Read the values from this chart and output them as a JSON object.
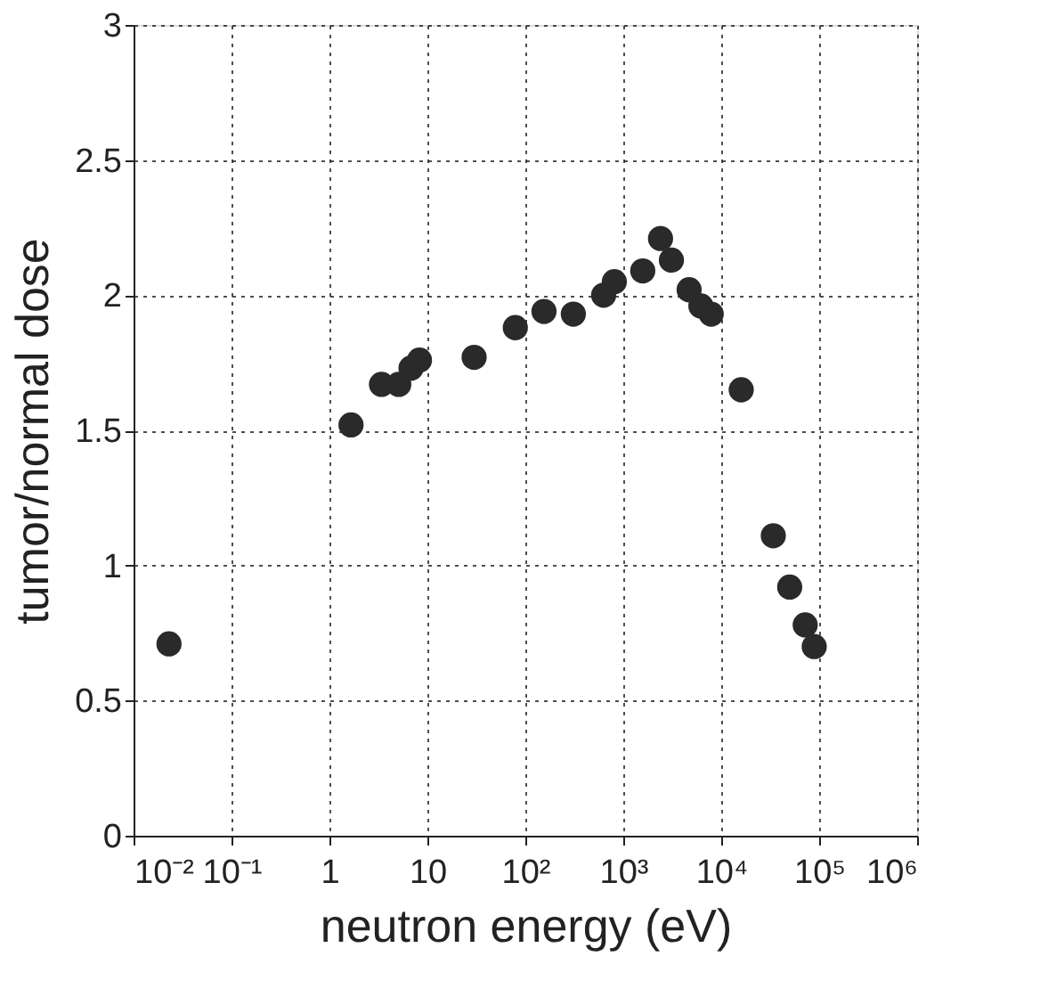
{
  "chart_data": {
    "type": "scatter",
    "xlabel": "neutron energy (eV)",
    "ylabel": "tumor/normal dose",
    "x": [
      0.023,
      1.66,
      3.4,
      5.1,
      6.8,
      8.3,
      30,
      79,
      155,
      309,
      630,
      810,
      1580,
      2400,
      3100,
      4700,
      6200,
      7900,
      16000,
      34000,
      50000,
      72000,
      89000
    ],
    "series": [
      {
        "color": "#2a2a2a",
        "values": [
          0.71,
          1.52,
          1.67,
          1.67,
          1.73,
          1.76,
          1.77,
          1.88,
          1.94,
          1.93,
          2.0,
          2.05,
          2.09,
          2.21,
          2.13,
          2.02,
          1.96,
          1.93,
          1.65,
          1.11,
          0.92,
          0.78,
          0.7
        ]
      }
    ],
    "log": "x",
    "xlim": [
      0.01,
      1000000
    ],
    "ylim": [
      0,
      3
    ],
    "xticks": [
      {
        "value": 0.01,
        "label": "10⁻²"
      },
      {
        "value": 0.1,
        "label": "10⁻¹"
      },
      1,
      10,
      {
        "value": 100,
        "label": "10²"
      },
      {
        "value": 1000,
        "label": "10³"
      },
      {
        "value": 10000,
        "label": "10⁴"
      },
      {
        "value": 100000,
        "label": "10⁵"
      },
      {
        "value": 1000000,
        "label": "10⁶"
      }
    ],
    "yticks": [
      0,
      0.5,
      1,
      1.5,
      2,
      2.5,
      3
    ],
    "grid": true,
    "marker": "circle"
  }
}
